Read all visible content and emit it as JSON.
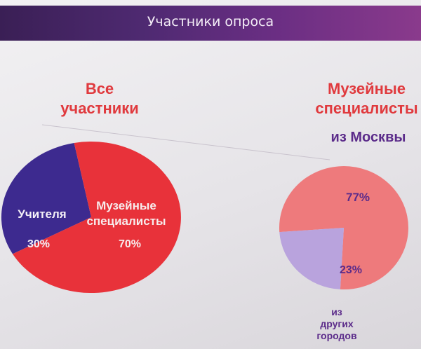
{
  "title": "Участники опроса",
  "colors": {
    "title_bar": "#4f2a72",
    "heading_red": "#e03a3e",
    "purple_text": "#5b2b8a",
    "teachers": "#3d2a8f",
    "museum": "#e8323a",
    "moscow": "#ee7a7c",
    "other_cities": "#b9a3dd"
  },
  "chart_data": [
    {
      "type": "pie",
      "title": "Все участники",
      "categories": [
        "Учителя",
        "Музейные специалисты"
      ],
      "values": [
        30,
        70
      ],
      "labels": [
        "30%",
        "70%"
      ]
    },
    {
      "type": "pie",
      "title": "Музейные специалисты",
      "subtitle": "из Москвы",
      "categories": [
        "из Москвы",
        "из других городов"
      ],
      "values": [
        77,
        23
      ],
      "labels": [
        "77%",
        "23%"
      ]
    }
  ],
  "labels": {
    "left_heading_1": "Все",
    "left_heading_2": "участники",
    "right_heading_1": "Музейные",
    "right_heading_2": "специалисты",
    "teachers": "Учителя",
    "museum_1": "Музейные",
    "museum_2": "специалисты",
    "other_1": "из",
    "other_2": "других",
    "other_3": "городов"
  }
}
